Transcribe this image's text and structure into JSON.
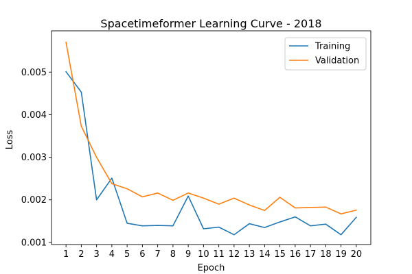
{
  "chart_data": {
    "type": "line",
    "title": "Spacetimeformer Learning Curve - 2018",
    "xlabel": "Epoch",
    "ylabel": "Loss",
    "x": [
      1,
      2,
      3,
      4,
      5,
      6,
      7,
      8,
      9,
      10,
      11,
      12,
      13,
      14,
      15,
      16,
      17,
      18,
      19,
      20
    ],
    "xticks": [
      "1",
      "2",
      "3",
      "4",
      "5",
      "6",
      "7",
      "8",
      "9",
      "10",
      "11",
      "12",
      "13",
      "14",
      "15",
      "16",
      "17",
      "18",
      "19",
      "20"
    ],
    "yticks": [
      0.001,
      0.002,
      0.003,
      0.004,
      0.005
    ],
    "ytick_labels": [
      "0.001",
      "0.002",
      "0.003",
      "0.004",
      "0.005"
    ],
    "ylim": [
      0.00095,
      0.00597
    ],
    "xlim": [
      0.05,
      20.95
    ],
    "grid": false,
    "legend_position": "top-right",
    "series": [
      {
        "name": "Training",
        "color": "#1f77b4",
        "values": [
          0.00501,
          0.00453,
          0.002,
          0.00251,
          0.00145,
          0.00139,
          0.0014,
          0.00139,
          0.00209,
          0.00132,
          0.00136,
          0.00118,
          0.00144,
          0.00135,
          0.00148,
          0.0016,
          0.00139,
          0.00143,
          0.00118,
          0.00159
        ]
      },
      {
        "name": "Validation",
        "color": "#ff7f0e",
        "values": [
          0.0057,
          0.00373,
          0.003,
          0.00238,
          0.00226,
          0.00207,
          0.00216,
          0.00199,
          0.00216,
          0.00204,
          0.0019,
          0.00204,
          0.00188,
          0.00175,
          0.00206,
          0.00181,
          0.00182,
          0.00183,
          0.00167,
          0.00176
        ]
      }
    ]
  }
}
